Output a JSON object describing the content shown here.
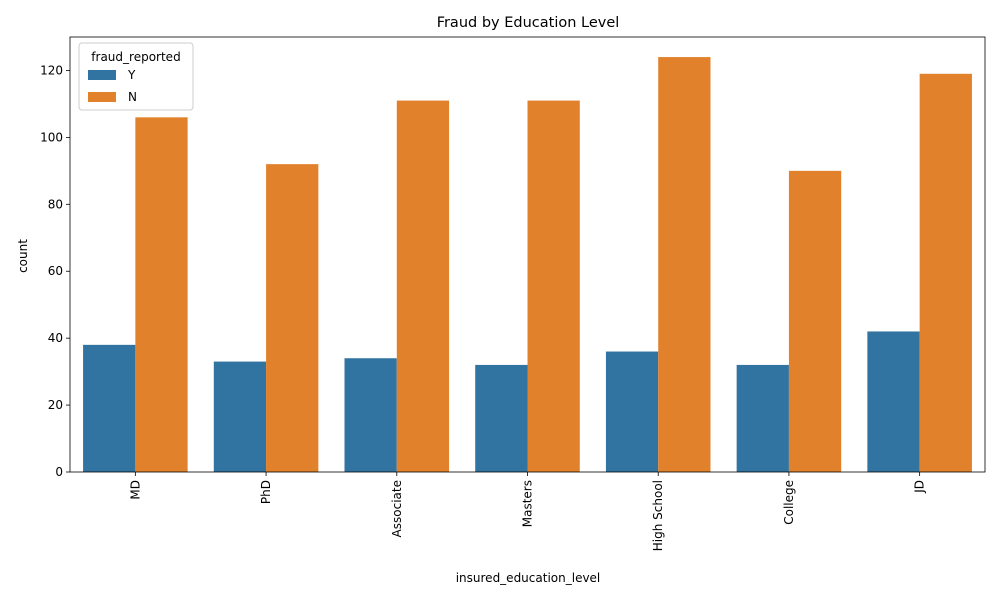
{
  "chart_data": {
    "type": "bar",
    "title": "Fraud by Education Level",
    "xlabel": "insured_education_level",
    "ylabel": "count",
    "categories": [
      "MD",
      "PhD",
      "Associate",
      "Masters",
      "High School",
      "College",
      "JD"
    ],
    "series": [
      {
        "name": "Y",
        "color": "#3274a1",
        "values": [
          38,
          33,
          34,
          32,
          36,
          32,
          42
        ]
      },
      {
        "name": "N",
        "color": "#e1812c",
        "values": [
          106,
          92,
          111,
          111,
          124,
          90,
          119
        ]
      }
    ],
    "ylim": [
      0,
      130
    ],
    "yticks": [
      0,
      20,
      40,
      60,
      80,
      100,
      120
    ],
    "legend": {
      "title": "fraud_reported",
      "placement": "top-left"
    },
    "grid": false
  }
}
